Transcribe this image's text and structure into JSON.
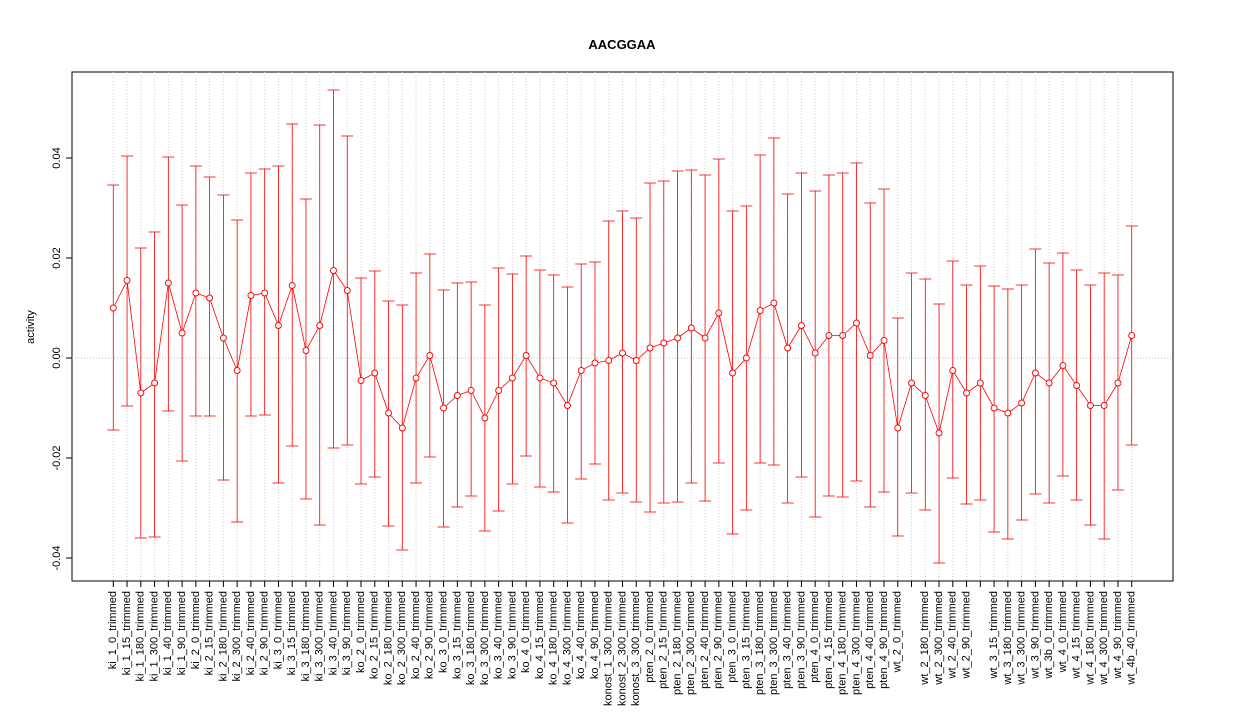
{
  "chart_data": {
    "type": "errorbar",
    "title": "AACGGAA",
    "ylabel": "activity",
    "categories": [
      "ki_1_0_trimmed",
      "ki_1_15_trimmed",
      "ki_1_180_trimmed",
      "ki_1_300_trimmed",
      "ki_1_40_trimmed",
      "ki_1_90_trimmed",
      "ki_2_0_trimmed",
      "ki_2_15_trimmed",
      "ki_2_180_trimmed",
      "ki_2_300_trimmed",
      "ki_2_40_trimmed",
      "ki_2_90_trimmed",
      "ki_3_0_trimmed",
      "ki_3_15_trimmed",
      "ki_3_180_trimmed",
      "ki_3_300_trimmed",
      "ki_3_40_trimmed",
      "ki_3_90_trimmed",
      "ko_2_0_trimmed",
      "ko_2_15_trimmed",
      "ko_2_180_trimmed",
      "ko_2_300_trimmed",
      "ko_2_40_trimmed",
      "ko_2_90_trimmed",
      "ko_3_0_trimmed",
      "ko_3_15_trimmed",
      "ko_3_180_trimmed",
      "ko_3_300_trimmed",
      "ko_3_40_trimmed",
      "ko_3_90_trimmed",
      "ko_4_0_trimmed",
      "ko_4_15_trimmed",
      "ko_4_180_trimmed",
      "ko_4_300_trimmed",
      "ko_4_40_trimmed",
      "ko_4_90_trimmed",
      "konost_1_300_trimmed",
      "konost_2_300_trimmed",
      "konost_3_300_trimmed",
      "pten_2_0_trimmed",
      "pten_2_15_trimmed",
      "pten_2_180_trimmed",
      "pten_2_300_trimmed",
      "pten_2_40_trimmed",
      "pten_2_90_trimmed",
      "pten_3_0_trimmed",
      "pten_3_15_trimmed",
      "pten_3_180_trimmed",
      "pten_3_300_trimmed",
      "pten_3_40_trimmed",
      "pten_3_90_trimmed",
      "pten_4_0_trimmed",
      "pten_4_15_trimmed",
      "pten_4_180_trimmed",
      "pten_4_300_trimmed",
      "pten_4_40_trimmed",
      "pten_4_90_trimmed",
      "wt_2_0_trimmed",
      null,
      "wt_2_180_trimmed",
      "wt_2_300_trimmed",
      "wt_2_40_trimmed",
      "wt_2_90_trimmed",
      null,
      "wt_3_15_trimmed",
      "wt_3_180_trimmed",
      "wt_3_300_trimmed",
      "wt_3_90_trimmed",
      "wt_3b_0_trimmed",
      "wt_4_0_trimmed",
      "wt_4_15_trimmed",
      "wt_4_180_trimmed",
      "wt_4_300_trimmed",
      "wt_4_90_trimmed",
      "wt_4b_40_trimmed"
    ],
    "values": [
      0.01,
      0.0155,
      -0.007,
      -0.005,
      0.015,
      0.005,
      0.013,
      0.012,
      0.004,
      -0.0025,
      0.0125,
      0.013,
      0.0065,
      0.0145,
      0.0015,
      0.0065,
      0.0175,
      0.0135,
      -0.0045,
      -0.003,
      -0.011,
      -0.014,
      -0.004,
      0.0005,
      -0.01,
      -0.0075,
      -0.0065,
      -0.012,
      -0.0065,
      -0.004,
      0.0005,
      -0.004,
      -0.005,
      -0.0095,
      -0.0025,
      -0.001,
      -0.0005,
      0.001,
      -0.0005,
      0.002,
      0.003,
      0.004,
      0.006,
      0.004,
      0.009,
      -0.003,
      0,
      0.0095,
      0.011,
      0.002,
      0.0065,
      0.001,
      0.0045,
      0.0045,
      0.007,
      0.0005,
      0.0035,
      -0.014,
      -0.005,
      -0.0075,
      -0.015,
      -0.0025,
      -0.007,
      -0.005,
      -0.01,
      -0.011,
      -0.009,
      -0.003,
      -0.005,
      -0.0015,
      -0.0055,
      -0.0095,
      -0.0095,
      -0.005,
      0.0045
    ],
    "upper": [
      0.0346,
      0.0404,
      0.022,
      0.0252,
      0.0402,
      0.0306,
      0.0384,
      0.0362,
      0.0326,
      0.0276,
      0.037,
      0.0378,
      0.0384,
      0.0468,
      0.0318,
      0.0466,
      0.0536,
      0.0444,
      0.016,
      0.0174,
      0.0114,
      0.0106,
      0.017,
      0.0208,
      0.0136,
      0.015,
      0.0152,
      0.0106,
      0.018,
      0.0168,
      0.0204,
      0.0176,
      0.0166,
      0.0142,
      0.0188,
      0.0192,
      0.0274,
      0.0294,
      0.028,
      0.035,
      0.0354,
      0.0374,
      0.0376,
      0.0366,
      0.0398,
      0.0294,
      0.0304,
      0.0406,
      0.044,
      0.0328,
      0.037,
      0.0334,
      0.0366,
      0.037,
      0.039,
      0.031,
      0.0338,
      0.008,
      0.017,
      0.0158,
      0.0108,
      0.0194,
      0.0146,
      0.0184,
      0.0144,
      0.0138,
      0.0146,
      0.0218,
      0.019,
      0.021,
      0.0176,
      0.0146,
      0.017,
      0.0166,
      0.0264
    ],
    "lower": [
      -0.0144,
      -0.0096,
      -0.036,
      -0.0358,
      -0.0106,
      -0.0206,
      -0.0116,
      -0.0116,
      -0.0244,
      -0.0328,
      -0.0116,
      -0.0114,
      -0.025,
      -0.0176,
      -0.0282,
      -0.0334,
      -0.018,
      -0.0174,
      -0.0252,
      -0.0238,
      -0.0336,
      -0.0384,
      -0.025,
      -0.0198,
      -0.0338,
      -0.0298,
      -0.0276,
      -0.0346,
      -0.0306,
      -0.0252,
      -0.0196,
      -0.0258,
      -0.0268,
      -0.033,
      -0.0242,
      -0.0212,
      -0.0284,
      -0.027,
      -0.0288,
      -0.0308,
      -0.029,
      -0.0288,
      -0.025,
      -0.0286,
      -0.021,
      -0.0352,
      -0.0304,
      -0.021,
      -0.0214,
      -0.029,
      -0.0238,
      -0.0318,
      -0.0276,
      -0.0278,
      -0.0246,
      -0.0298,
      -0.0268,
      -0.0356,
      -0.027,
      -0.0304,
      -0.041,
      -0.024,
      -0.0292,
      -0.0284,
      -0.0348,
      -0.0362,
      -0.0324,
      -0.0272,
      -0.029,
      -0.0236,
      -0.0284,
      -0.0334,
      -0.0362,
      -0.0264,
      -0.0174
    ],
    "color": "#ff0000",
    "ylim": [
      -0.0446,
      0.0572
    ],
    "yticks": [
      -0.04,
      -0.02,
      {
        "value": 0,
        "label": "0.00"
      },
      0.02,
      0.04
    ],
    "hline": 0,
    "grid": true
  }
}
